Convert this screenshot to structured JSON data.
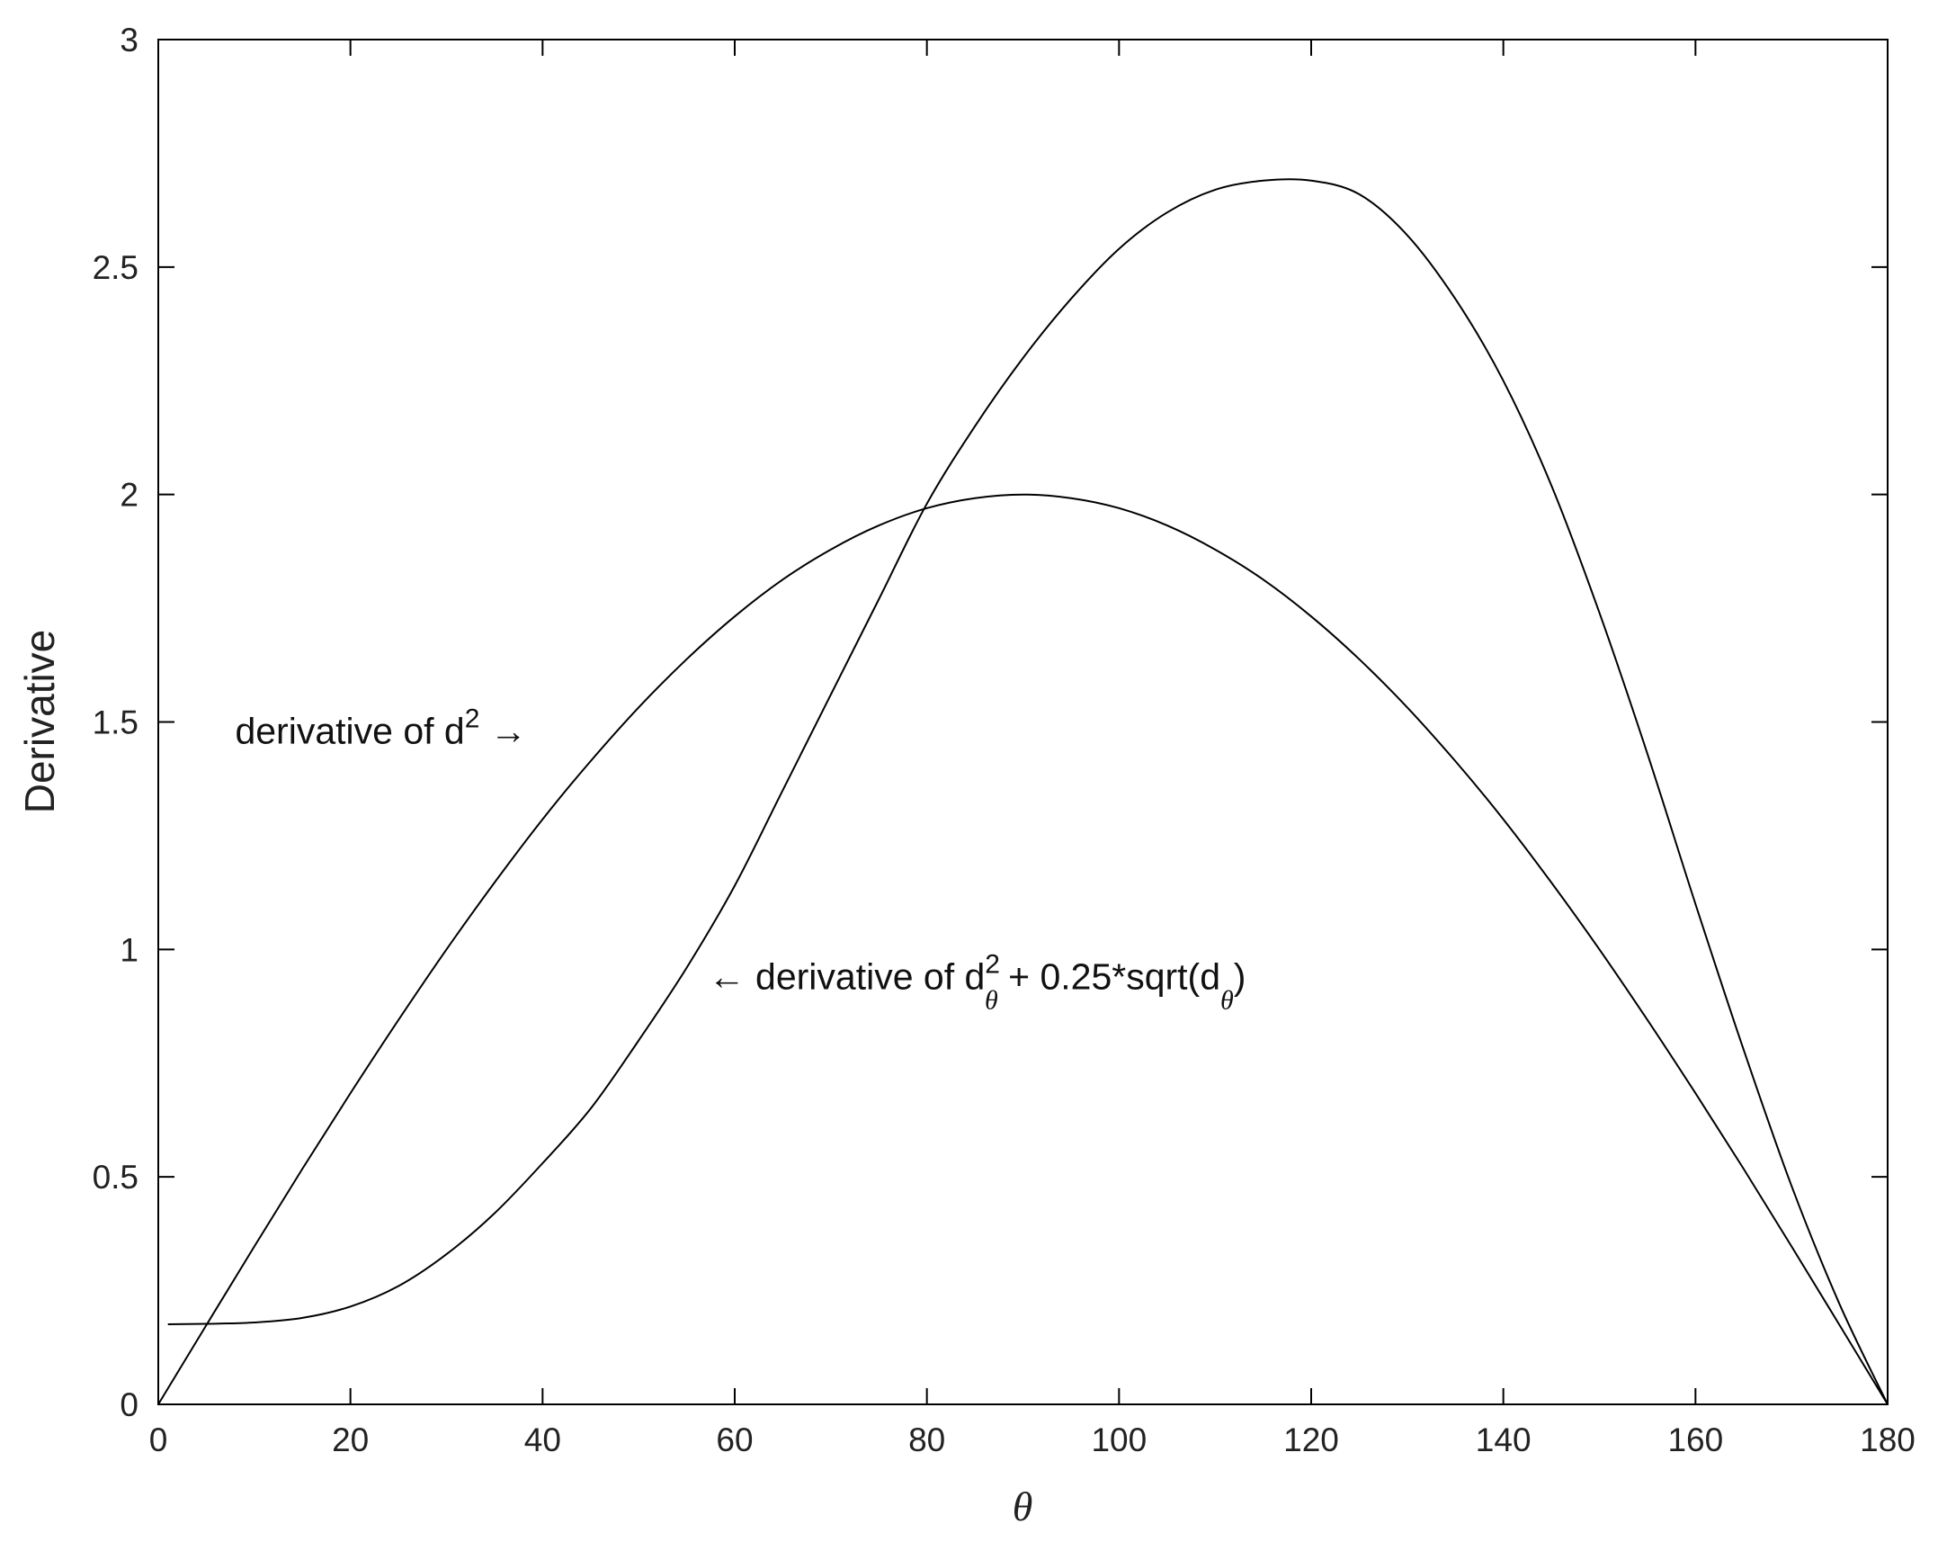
{
  "chart_data": {
    "type": "line",
    "title": "",
    "xlabel": "θ",
    "ylabel": "Derivative",
    "xlim": [
      0,
      180
    ],
    "ylim": [
      0,
      3
    ],
    "xticks": [
      0,
      20,
      40,
      60,
      80,
      100,
      120,
      140,
      160,
      180
    ],
    "yticks": [
      0,
      0.5,
      1,
      1.5,
      2,
      2.5,
      3
    ],
    "xtick_labels": [
      "0",
      "20",
      "40",
      "60",
      "80",
      "100",
      "120",
      "140",
      "160",
      "180"
    ],
    "ytick_labels": [
      "0",
      "0.5",
      "1",
      "1.5",
      "2",
      "2.5",
      "3"
    ],
    "grid": false,
    "legend": "none",
    "line_color": "#000000",
    "series": [
      {
        "x": [
          0,
          5,
          10,
          15,
          20,
          25,
          30,
          35,
          40,
          45,
          50,
          55,
          60,
          65,
          70,
          75,
          80,
          85,
          90,
          95,
          100,
          105,
          110,
          115,
          120,
          125,
          130,
          135,
          140,
          145,
          150,
          155,
          160,
          165,
          170,
          175,
          180
        ],
        "values": [
          0.0,
          0.174,
          0.347,
          0.518,
          0.684,
          0.845,
          1.0,
          1.147,
          1.286,
          1.414,
          1.532,
          1.638,
          1.732,
          1.813,
          1.879,
          1.932,
          1.97,
          1.992,
          2.0,
          1.992,
          1.97,
          1.932,
          1.879,
          1.813,
          1.732,
          1.638,
          1.532,
          1.414,
          1.286,
          1.147,
          1.0,
          0.845,
          0.684,
          0.518,
          0.347,
          0.174,
          0.0
        ]
      },
      {
        "x": [
          1,
          5,
          10,
          15,
          20,
          25,
          30,
          35,
          40,
          45,
          50,
          55,
          60,
          65,
          70,
          75,
          80,
          85,
          90,
          95,
          100,
          105,
          110,
          115,
          120,
          125,
          130,
          135,
          140,
          145,
          150,
          155,
          160,
          165,
          170,
          175,
          180
        ],
        "values": [
          0.176,
          0.177,
          0.18,
          0.19,
          0.215,
          0.26,
          0.33,
          0.42,
          0.53,
          0.65,
          0.8,
          0.96,
          1.14,
          1.35,
          1.56,
          1.77,
          1.98,
          2.15,
          2.3,
          2.43,
          2.54,
          2.62,
          2.67,
          2.69,
          2.69,
          2.66,
          2.57,
          2.43,
          2.25,
          2.02,
          1.74,
          1.43,
          1.1,
          0.78,
          0.48,
          0.22,
          0.0
        ]
      }
    ],
    "annotations": [
      {
        "prefix": "derivative of d",
        "superscript": "2",
        "arrow": "→",
        "x": 8,
        "y": 1.48
      },
      {
        "arrow": "←",
        "prefix": "derivative of d",
        "superscript": "2",
        "subscript": "θ",
        "middle": " + 0.25*sqrt(d",
        "subscript2": "θ",
        "suffix": ")",
        "x": 58,
        "y": 0.94
      }
    ]
  }
}
